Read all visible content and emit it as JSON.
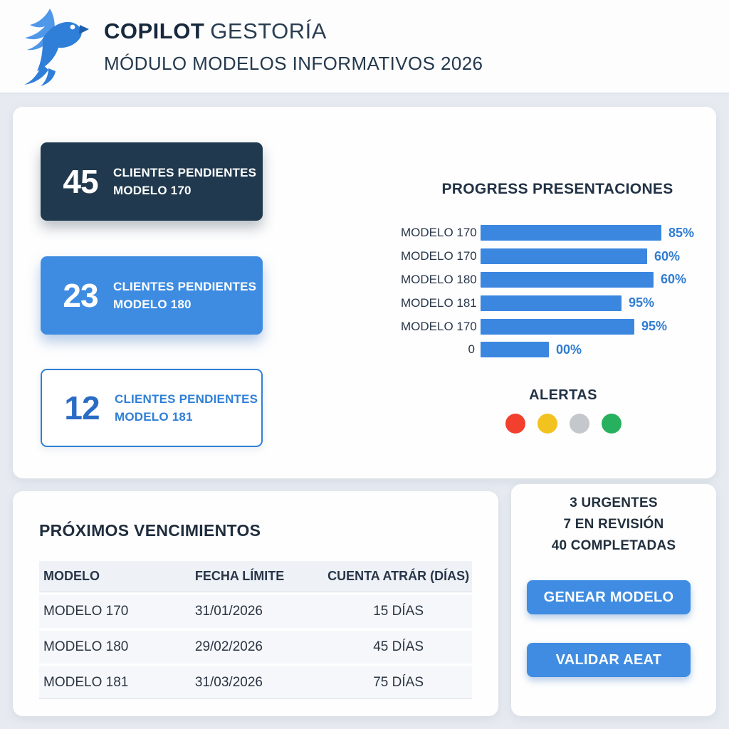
{
  "header": {
    "brand_bold": "COPILOT",
    "brand_light": "GESTORÍA",
    "subtitle": "MÓDULO MODELOS INFORMATIVOS 2026"
  },
  "stat_cards": [
    {
      "value": "45",
      "line1": "CLIENTES PENDIENTES",
      "line2": "MODELO 170",
      "style": "dark"
    },
    {
      "value": "23",
      "line1": "CLIENTES PENDIENTES",
      "line2": "MODELO 180",
      "style": "blue"
    },
    {
      "value": "12",
      "line1": "CLIENTES PENDIENTES",
      "line2": "MODELO 181",
      "style": "outline"
    }
  ],
  "chart_data": {
    "type": "bar",
    "orientation": "horizontal",
    "title": "PROGRESS PRESENTACIONES",
    "categories": [
      "MODELO 170",
      "MODELO 170",
      "MODELO 180",
      "MODELO 181",
      "MODELO 170",
      "0"
    ],
    "values": [
      85,
      60,
      60,
      95,
      95,
      0
    ],
    "value_labels": [
      "85%",
      "60%",
      "60%",
      "95%",
      "95%",
      "00%"
    ],
    "bar_width_pct": [
      85,
      78,
      81,
      66,
      72,
      32
    ],
    "bar_color": "#3b87e0",
    "label_color": "#2f7cd3",
    "xlabel": "",
    "ylabel": "",
    "grid": false,
    "legend": false
  },
  "alerts": {
    "title": "ALERTAS",
    "dots": [
      {
        "name": "alert-red",
        "color": "#f23f2e"
      },
      {
        "name": "alert-yellow",
        "color": "#f2c21f"
      },
      {
        "name": "alert-gray",
        "color": "#c4c8cc"
      },
      {
        "name": "alert-green",
        "color": "#27b15e"
      }
    ]
  },
  "deadlines": {
    "title": "PRÓXIMOS VENCIMIENTOS",
    "columns": [
      "MODELO",
      "FECHA LÍMITE",
      "CUENTA ATRÁR (DÍAS)"
    ],
    "rows": [
      [
        "MODELO 170",
        "31/01/2026",
        "15 DÍAS"
      ],
      [
        "MODELO 180",
        "29/02/2026",
        "45 DÍAS"
      ],
      [
        "MODELO 181",
        "31/03/2026",
        "75 DÍAS"
      ]
    ]
  },
  "status_panel": {
    "lines": [
      "3 URGENTES",
      "7 EN REVISIÓN",
      "40 COMPLETADAS"
    ],
    "buttons": [
      "GENEAR MODELO",
      "VALIDAR AEAT"
    ]
  },
  "colors": {
    "accent_blue": "#3e8ce2",
    "navy": "#20394f",
    "page_bg": "#e7ebf1"
  }
}
